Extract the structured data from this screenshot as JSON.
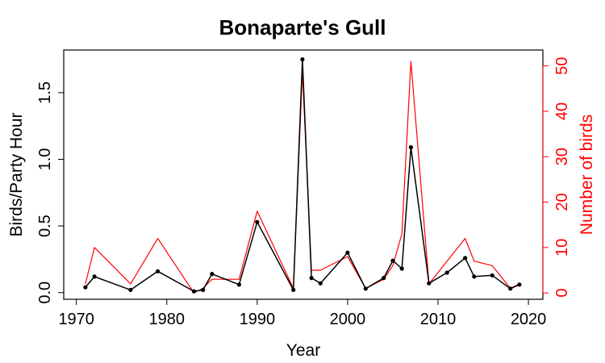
{
  "chart_data": {
    "type": "line",
    "title": "Bonaparte's Gull",
    "xlabel": "Year",
    "ylabel_left": "Birds/Party Hour",
    "ylabel_right": "Number of birds",
    "xlim": [
      1968.6,
      2021.6
    ],
    "ylim_left": [
      -0.05,
      1.82
    ],
    "ylim_right": [
      -1.4,
      53.5
    ],
    "x_ticks": [
      1970,
      1980,
      1990,
      2000,
      2010,
      2020
    ],
    "y_left_ticks": [
      0.0,
      0.5,
      1.0,
      1.5
    ],
    "y_left_tick_labels": [
      "0.0",
      "0.5",
      "1.0",
      "1.5"
    ],
    "y_right_ticks": [
      0,
      10,
      20,
      30,
      40,
      50
    ],
    "grid": false,
    "legend": "none",
    "colors": {
      "birds_per_party_hour": "#000000",
      "number_of_birds": "#ff0000"
    },
    "series": [
      {
        "axis": "left",
        "points": [
          [
            1971,
            0.04
          ],
          [
            1972,
            0.12
          ],
          [
            1976,
            0.02
          ],
          [
            1979,
            0.16
          ],
          [
            1983,
            0.01
          ],
          [
            1984,
            0.02
          ],
          [
            1985,
            0.14
          ],
          [
            1988,
            0.06
          ],
          [
            1990,
            0.53
          ],
          [
            1994,
            0.02
          ],
          [
            1995,
            1.75
          ],
          [
            1996,
            0.11
          ],
          [
            1997,
            0.07
          ],
          [
            2000,
            0.3
          ],
          [
            2002,
            0.03
          ],
          [
            2004,
            0.11
          ],
          [
            2005,
            0.24
          ],
          [
            2006,
            0.18
          ],
          [
            2007,
            1.09
          ],
          [
            2009,
            0.07
          ],
          [
            2011,
            0.15
          ],
          [
            2013,
            0.26
          ],
          [
            2014,
            0.12
          ],
          [
            2016,
            0.13
          ],
          [
            2018,
            0.03
          ],
          [
            2019,
            0.06
          ]
        ]
      },
      {
        "axis": "right",
        "points": [
          [
            1971,
            2
          ],
          [
            1972,
            10
          ],
          [
            1976,
            2
          ],
          [
            1979,
            12
          ],
          [
            1983,
            0
          ],
          [
            1984,
            1
          ],
          [
            1985,
            3
          ],
          [
            1988,
            3
          ],
          [
            1990,
            18
          ],
          [
            1994,
            1
          ],
          [
            1995,
            49
          ],
          [
            1996,
            5
          ],
          [
            1997,
            5
          ],
          [
            2000,
            8
          ],
          [
            2002,
            1
          ],
          [
            2004,
            3
          ],
          [
            2005,
            6
          ],
          [
            2006,
            13
          ],
          [
            2007,
            51
          ],
          [
            2009,
            2
          ],
          [
            2011,
            7
          ],
          [
            2013,
            12
          ],
          [
            2014,
            7
          ],
          [
            2016,
            6
          ],
          [
            2018,
            1
          ],
          [
            2019,
            2
          ]
        ]
      }
    ]
  }
}
